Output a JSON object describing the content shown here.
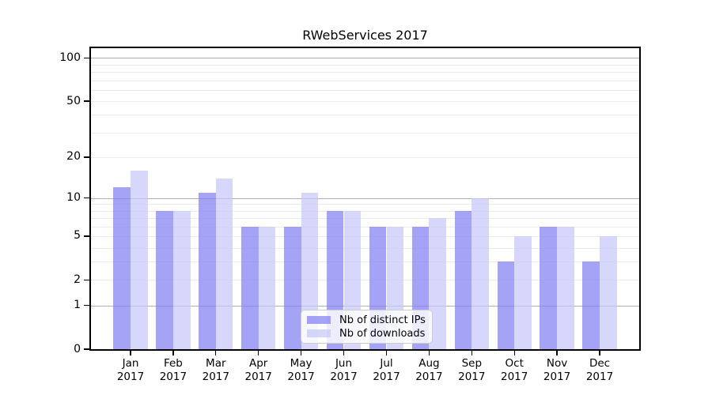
{
  "chart_data": {
    "type": "bar",
    "title": "RWebServices 2017",
    "categories": [
      "Jan",
      "Feb",
      "Mar",
      "Apr",
      "May",
      "Jun",
      "Jul",
      "Aug",
      "Sep",
      "Oct",
      "Nov",
      "Dec"
    ],
    "category_year": "2017",
    "series": [
      {
        "name": "Nb of distinct IPs",
        "color": "rgba(130,127,242,0.72)",
        "values": [
          12,
          8,
          11,
          6,
          6,
          8,
          6,
          6,
          8,
          3,
          6,
          3
        ]
      },
      {
        "name": "Nb of downloads",
        "color": "rgba(200,199,250,0.72)",
        "values": [
          16,
          8,
          14,
          6,
          11,
          8,
          6,
          7,
          10,
          5,
          6,
          5
        ]
      }
    ],
    "y_axis": {
      "scale": "log10(value+1)",
      "tick_labels": [
        100,
        50,
        20,
        10,
        5,
        2,
        1,
        0
      ],
      "top_value": 117,
      "major_gridlines": [
        1,
        10,
        100
      ],
      "minor_gridlines": [
        2,
        3,
        4,
        5,
        6,
        7,
        8,
        9,
        20,
        30,
        40,
        50,
        60,
        70,
        80,
        90
      ]
    },
    "xlabel": "",
    "ylabel": "",
    "grid": true,
    "legend_position": "lower center",
    "colors": {
      "spine": "#000000",
      "major_grid": "#b0b0b0",
      "minor_grid": "#ebebeb",
      "legend_border": "#cccccc"
    }
  }
}
